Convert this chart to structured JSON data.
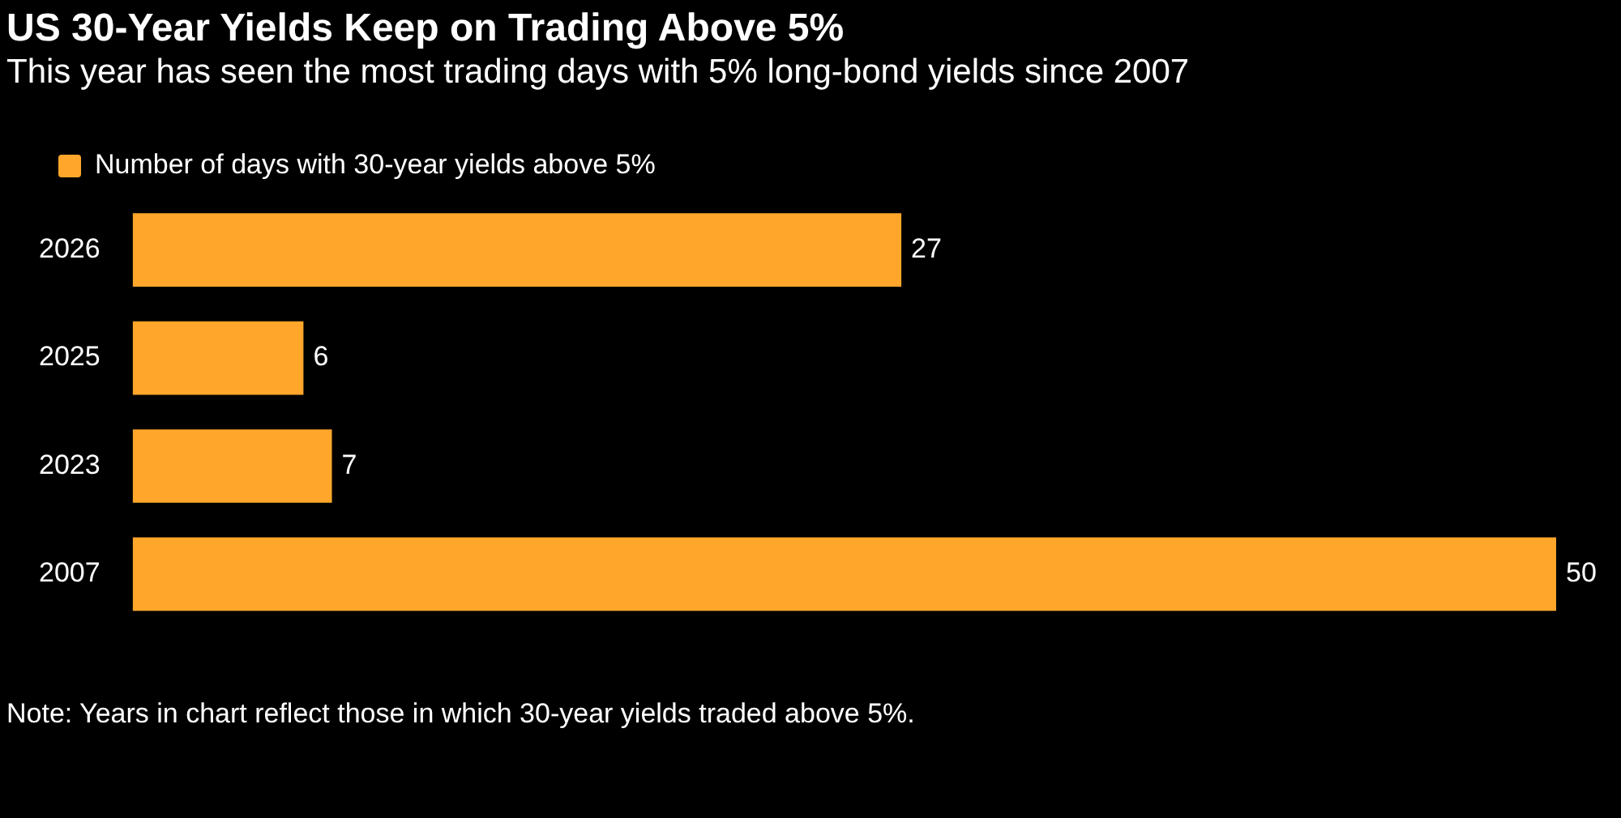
{
  "chart_data": {
    "type": "bar",
    "orientation": "horizontal",
    "title": "US 30-Year Yields Keep on Trading Above 5%",
    "subtitle": "This year has seen the most trading days with 5% long-bond yields since 2007",
    "categories": [
      "2026",
      "2025",
      "2023",
      "2007"
    ],
    "series": [
      {
        "name": "Number of days with 30-year yields above 5%",
        "color": "#ffa62b",
        "values": [
          27,
          6,
          7,
          50
        ]
      }
    ],
    "data_labels": true,
    "legend": "top left",
    "tick_labels": "y",
    "annotations": [
      "Note: Years in chart reflect those in which 30-year yields traded above 5%."
    ]
  }
}
